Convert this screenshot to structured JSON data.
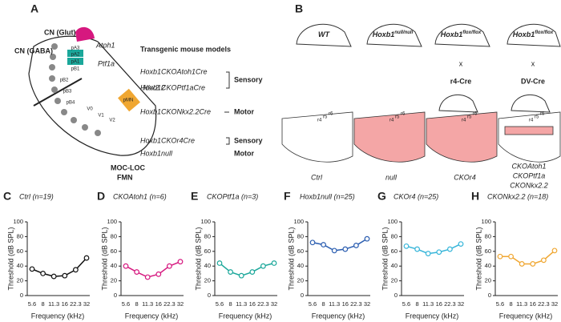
{
  "panel_a": {
    "letter": "A",
    "labels": [
      {
        "text": "CN (Glut)",
        "color": "#d6187f",
        "italic": false
      },
      {
        "text": "Atoh1",
        "color": "#d6187f",
        "italic": true
      },
      {
        "text": "CN (GABA)",
        "color": "#1aa79a",
        "italic": false
      },
      {
        "text": "Ptf1a",
        "color": "#1aa79a",
        "italic": true
      },
      {
        "text": "Nkx2.2",
        "color": "#f0a732",
        "italic": true
      },
      {
        "text": "MOC-LOC",
        "color": "#f0a732",
        "italic": false
      },
      {
        "text": "FMN",
        "color": "#f0a732",
        "italic": false
      }
    ],
    "domains": [
      "pA3",
      "pA2",
      "pA1",
      "pB1",
      "pB2",
      "pB3",
      "pB4",
      "V0",
      "V1",
      "V2",
      "pMN"
    ],
    "models_title": "Transgenic mouse models",
    "models": [
      {
        "text": "Hoxb1CKOAtoh1Cre",
        "color": "#d6187f"
      },
      {
        "text": "Hoxb1CKOPtf1aCre",
        "color": "#1aa79a"
      },
      {
        "text": "Hoxb1CKONkx2.2Cre",
        "color": "#f0a732"
      },
      {
        "text": "Hoxb1CKOr4Cre",
        "color": "#36b5d9"
      },
      {
        "text": "Hoxb1null",
        "color": "#1f3b7a"
      }
    ],
    "groups": [
      "Sensory",
      "Motor",
      "Sensory",
      "Motor"
    ]
  },
  "panel_b": {
    "letter": "B",
    "mice": [
      {
        "name": "WT",
        "sup": null
      },
      {
        "name": "Hoxb1",
        "sup": "null/null"
      },
      {
        "name": "Hoxb1",
        "sup": "flox/flox"
      },
      {
        "name": "Hoxb1",
        "sup": "flox/flox"
      }
    ],
    "cross": "x",
    "drivers": [
      "r4-Cre",
      "DV-Cre"
    ],
    "rhombomeres": [
      "r4",
      "r5",
      "r6"
    ],
    "brains": [
      {
        "text": "Ctrl",
        "color": "#222"
      },
      {
        "text": "null",
        "color": "#1f3b7a"
      },
      {
        "text": "CKOr4",
        "color": "#36b5d9"
      },
      {
        "text": "CKOAtoh1",
        "color": "#d6187f"
      },
      {
        "text": "CKOPtf1a",
        "color": "#1aa79a"
      },
      {
        "text": "CKONkx2.2",
        "color": "#f0a732"
      }
    ]
  },
  "chart_data": [
    {
      "type": "line",
      "panel": "C",
      "title": "Ctrl (n=19)",
      "xlabel": "Frequency (kHz)",
      "ylabel": "Threshold (dB SPL)",
      "categories": [
        "5.6",
        "8",
        "11.3",
        "16",
        "22.3",
        "32"
      ],
      "ylim": [
        0,
        100
      ],
      "yticks": [
        0,
        20,
        40,
        60,
        80,
        100
      ],
      "series": [
        {
          "name": "Ctrl",
          "color": "#111111",
          "values": [
            36,
            30,
            26,
            27,
            35,
            51
          ]
        }
      ]
    },
    {
      "type": "line",
      "panel": "D",
      "title": "CKOAtoh1 (n=6)",
      "xlabel": "Frequency (kHz)",
      "ylabel": "Threshold (dB SPL)",
      "categories": [
        "5.6",
        "8",
        "11.3",
        "16",
        "22.3",
        "32"
      ],
      "ylim": [
        0,
        100
      ],
      "yticks": [
        0,
        20,
        40,
        60,
        80,
        100
      ],
      "series": [
        {
          "name": "CKOAtoh1",
          "color": "#d6187f",
          "values": [
            40,
            32,
            25,
            29,
            40,
            46
          ]
        }
      ]
    },
    {
      "type": "line",
      "panel": "E",
      "title": "CKOPtf1a (n=3)",
      "xlabel": "Frequency (kHz)",
      "ylabel": "Threshold (dB SPL)",
      "categories": [
        "5.6",
        "8",
        "11.3",
        "16",
        "22.3",
        "32"
      ],
      "ylim": [
        0,
        100
      ],
      "yticks": [
        0,
        20,
        40,
        60,
        80,
        100
      ],
      "series": [
        {
          "name": "CKOPtf1a",
          "color": "#1aa79a",
          "values": [
            44,
            32,
            27,
            32,
            40,
            44
          ]
        }
      ]
    },
    {
      "type": "line",
      "panel": "F",
      "title": "Hoxb1null (n=25)",
      "xlabel": "Frequency (kHz)",
      "ylabel": "Threshold (dB SPL)",
      "categories": [
        "5.6",
        "8",
        "11.3",
        "16",
        "22.3",
        "32"
      ],
      "ylim": [
        0,
        100
      ],
      "yticks": [
        0,
        20,
        40,
        60,
        80,
        100
      ],
      "series": [
        {
          "name": "Hoxb1null",
          "color": "#2a5db0",
          "values": [
            72,
            69,
            61,
            63,
            68,
            77
          ]
        }
      ]
    },
    {
      "type": "line",
      "panel": "G",
      "title": "CKOr4 (n=25)",
      "xlabel": "Frequency (kHz)",
      "ylabel": "Threshold (dB SPL)",
      "categories": [
        "5.6",
        "8",
        "11.3",
        "16",
        "22.3",
        "32"
      ],
      "ylim": [
        0,
        100
      ],
      "yticks": [
        0,
        20,
        40,
        60,
        80,
        100
      ],
      "series": [
        {
          "name": "CKOr4",
          "color": "#36b5d9",
          "values": [
            67,
            63,
            57,
            59,
            63,
            70
          ]
        }
      ]
    },
    {
      "type": "line",
      "panel": "H",
      "title": "CKONkx2.2 (n=18)",
      "xlabel": "Frequency (kHz)",
      "ylabel": "Threshold (dB SPL)",
      "categories": [
        "5.6",
        "8",
        "11.3",
        "16",
        "22.3",
        "32"
      ],
      "ylim": [
        0,
        100
      ],
      "yticks": [
        0,
        20,
        40,
        60,
        80,
        100
      ],
      "series": [
        {
          "name": "CKONkx2.2",
          "color": "#f0a732",
          "values": [
            53,
            53,
            43,
            43,
            48,
            61
          ]
        }
      ]
    }
  ]
}
